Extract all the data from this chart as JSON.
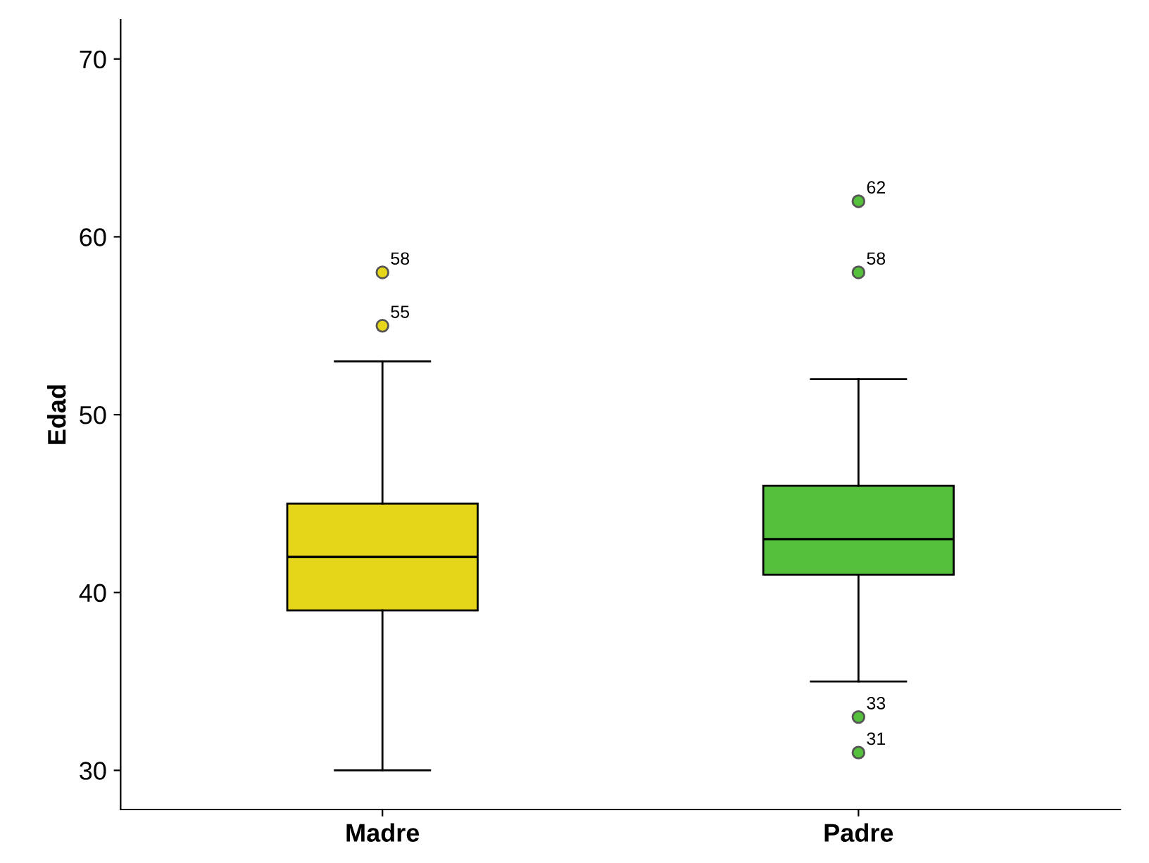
{
  "chart_data": {
    "type": "box",
    "ylabel": "Edad",
    "categories": [
      "Madre",
      "Padre"
    ],
    "series": [
      {
        "color": "#e6d619",
        "boxes": [
          {
            "low": 30,
            "q1": 39,
            "median": 42,
            "q3": 45,
            "high": 53,
            "outliers": [
              55,
              58
            ]
          },
          null
        ]
      },
      {
        "color": "#55c03c",
        "boxes": [
          null,
          {
            "low": 35,
            "q1": 41,
            "median": 43,
            "q3": 46,
            "high": 52,
            "outliers": [
              31,
              33,
              58,
              62
            ]
          }
        ]
      }
    ],
    "ylim": [
      27.8,
      72.2
    ],
    "yticks": [
      30,
      40,
      50,
      60,
      70
    ],
    "grid": false,
    "legend": false,
    "annotations": [
      "55",
      "58",
      "31",
      "33",
      "58",
      "62"
    ]
  }
}
